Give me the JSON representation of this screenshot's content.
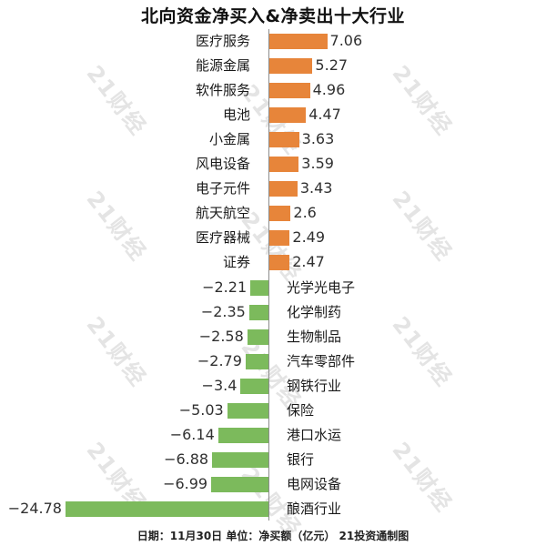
{
  "title": "北向资金净买入&净卖出十大行业",
  "footer": "日期：11月30日 单位：净买额（亿元） 21投资通制图",
  "watermark": {
    "text": "21财经",
    "color": "#e4e4e4"
  },
  "colors": {
    "positive_bar": "#E7853A",
    "negative_bar": "#7CBA5C",
    "axis_line": "#8c8c8c",
    "title_text": "#121212",
    "label_text": "#1a1a1a",
    "value_text": "#303030",
    "background": "#ffffff"
  },
  "chart_data": {
    "type": "bar",
    "orientation": "horizontal-diverging",
    "title": "北向资金净买入&净卖出十大行业",
    "xlabel": "",
    "ylabel": "",
    "unit": "净买额（亿元）",
    "date": "11月30日",
    "source": "21投资通制图",
    "grid": false,
    "legend": false,
    "xlim": [
      -26,
      8
    ],
    "categories": [
      "医疗服务",
      "能源金属",
      "软件服务",
      "电池",
      "小金属",
      "风电设备",
      "电子元件",
      "航天航空",
      "医疗器械",
      "证券",
      "光学光电子",
      "化学制药",
      "生物制品",
      "汽车零部件",
      "钢铁行业",
      "保险",
      "港口水运",
      "银行",
      "电网设备",
      "酿酒行业"
    ],
    "values": [
      7.06,
      5.27,
      4.96,
      4.47,
      3.63,
      3.59,
      3.43,
      2.6,
      2.49,
      2.47,
      -2.21,
      -2.35,
      -2.58,
      -2.79,
      -3.4,
      -5.03,
      -6.14,
      -6.88,
      -6.99,
      -24.78
    ],
    "value_labels": [
      "7.06",
      "5.27",
      "4.96",
      "4.47",
      "3.63",
      "3.59",
      "3.43",
      "2.6",
      "2.49",
      "2.47",
      "−2.21",
      "−2.35",
      "−2.58",
      "−2.79",
      "−3.4",
      "−5.03",
      "−6.14",
      "−6.88",
      "−6.99",
      "−24.78"
    ]
  }
}
